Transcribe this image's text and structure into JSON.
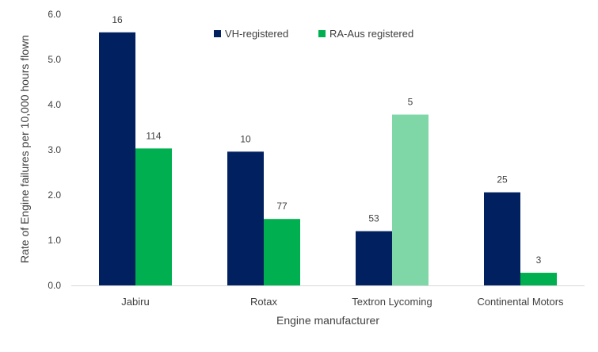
{
  "chart_data": {
    "type": "bar",
    "title": "",
    "xlabel": "Engine manufacturer",
    "ylabel": "Rate of Engine failures per 10,000 hours flown",
    "ylim": [
      0,
      6
    ],
    "yticks": [
      "0.0",
      "1.0",
      "2.0",
      "3.0",
      "4.0",
      "5.0",
      "6.0"
    ],
    "grid": false,
    "legend_position": "top-center",
    "categories": [
      "Jabiru",
      "Rotax",
      "Textron Lycoming",
      "Continental Motors"
    ],
    "series": [
      {
        "name": "VH-registered",
        "color": "#002060",
        "values": [
          5.6,
          2.96,
          1.2,
          2.06
        ],
        "labels": [
          "16",
          "10",
          "53",
          "25"
        ]
      },
      {
        "name": "RA-Aus registered",
        "color": "#00B050",
        "highlight_color": "#7FD7A7",
        "highlight_index": 2,
        "values": [
          3.03,
          1.47,
          3.78,
          0.28
        ],
        "labels": [
          "114",
          "77",
          "5",
          "3"
        ]
      }
    ]
  }
}
